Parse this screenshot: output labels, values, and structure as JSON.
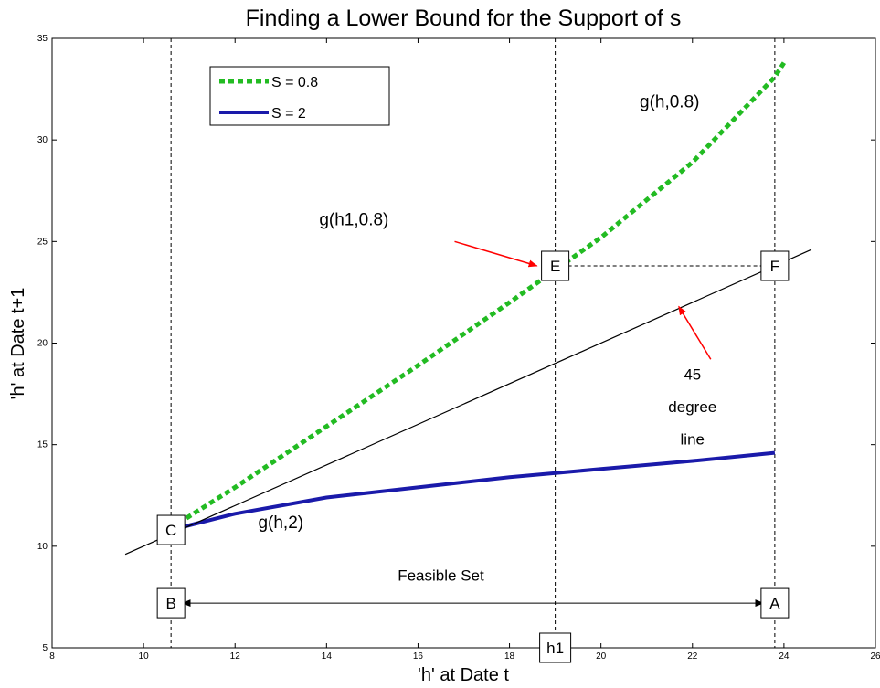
{
  "chart_data": {
    "type": "line",
    "title": "Finding a Lower Bound for the Support of s",
    "xlabel": "'h' at Date t",
    "ylabel": "'h' at Date t+1",
    "xlim": [
      8,
      26
    ],
    "ylim": [
      5,
      35
    ],
    "xticks": [
      8,
      10,
      12,
      14,
      16,
      18,
      20,
      22,
      24,
      26
    ],
    "yticks": [
      5,
      10,
      15,
      20,
      25,
      30,
      35
    ],
    "grid": false,
    "legend_placement": "top-left",
    "colors": {
      "s08": "#22bb22",
      "s2": "#1a1aaa",
      "diag": "#000000",
      "arrow_red": "#ff0000"
    },
    "series": [
      {
        "name": "S = 0.8",
        "style": "dotted",
        "x": [
          10.6,
          12,
          14,
          16,
          18,
          19,
          20,
          22,
          23.8,
          24
        ],
        "y": [
          10.9,
          12.9,
          15.9,
          18.9,
          22.0,
          23.6,
          25.2,
          28.9,
          33.1,
          33.8
        ]
      },
      {
        "name": "S = 2",
        "style": "solid",
        "x": [
          10.6,
          12,
          14,
          16,
          18,
          20,
          22,
          23.8
        ],
        "y": [
          10.8,
          11.6,
          12.4,
          12.9,
          13.4,
          13.8,
          14.2,
          14.6
        ]
      },
      {
        "style": "thin",
        "x": [
          9.6,
          24.6
        ],
        "y": [
          9.6,
          24.6
        ]
      }
    ],
    "reference_lines": {
      "vertical": [
        10.6,
        19.0,
        23.8
      ],
      "horizontal": {
        "y": 23.8,
        "x_from": 19.0,
        "x_to": 23.8
      }
    },
    "boxes": [
      {
        "label": "C",
        "x": 10.6,
        "y": 10.8
      },
      {
        "label": "E",
        "x": 19.0,
        "y": 23.8
      },
      {
        "label": "F",
        "x": 23.8,
        "y": 23.8
      },
      {
        "label": "B",
        "x": 10.6,
        "y": 7.2
      },
      {
        "label": "A",
        "x": 23.8,
        "y": 7.2
      },
      {
        "label": "h1",
        "x": 19.0,
        "y": 5.0
      }
    ],
    "annotations": [
      {
        "text": "g(h,0.8)",
        "x": 21.5,
        "y": 31.6
      },
      {
        "text": "g(h1,0.8)",
        "x": 14.6,
        "y": 25.8
      },
      {
        "text": "45",
        "x": 22.0,
        "y": 18.2
      },
      {
        "text": "degree",
        "x": 22.0,
        "y": 16.6
      },
      {
        "text": "line",
        "x": 22.0,
        "y": 15.0
      },
      {
        "text": "g(h,2)",
        "x": 13.0,
        "y": 10.9
      },
      {
        "text": "Feasible Set",
        "x": 16.5,
        "y": 8.3
      }
    ],
    "arrows": [
      {
        "from": [
          16.8,
          25.0
        ],
        "to": [
          18.6,
          23.8
        ],
        "color": "red"
      },
      {
        "from": [
          22.4,
          19.2
        ],
        "to": [
          21.7,
          21.8
        ],
        "color": "red"
      },
      {
        "from": [
          10.85,
          7.2
        ],
        "to": [
          23.55,
          7.2
        ],
        "color": "black",
        "double": true
      }
    ]
  }
}
